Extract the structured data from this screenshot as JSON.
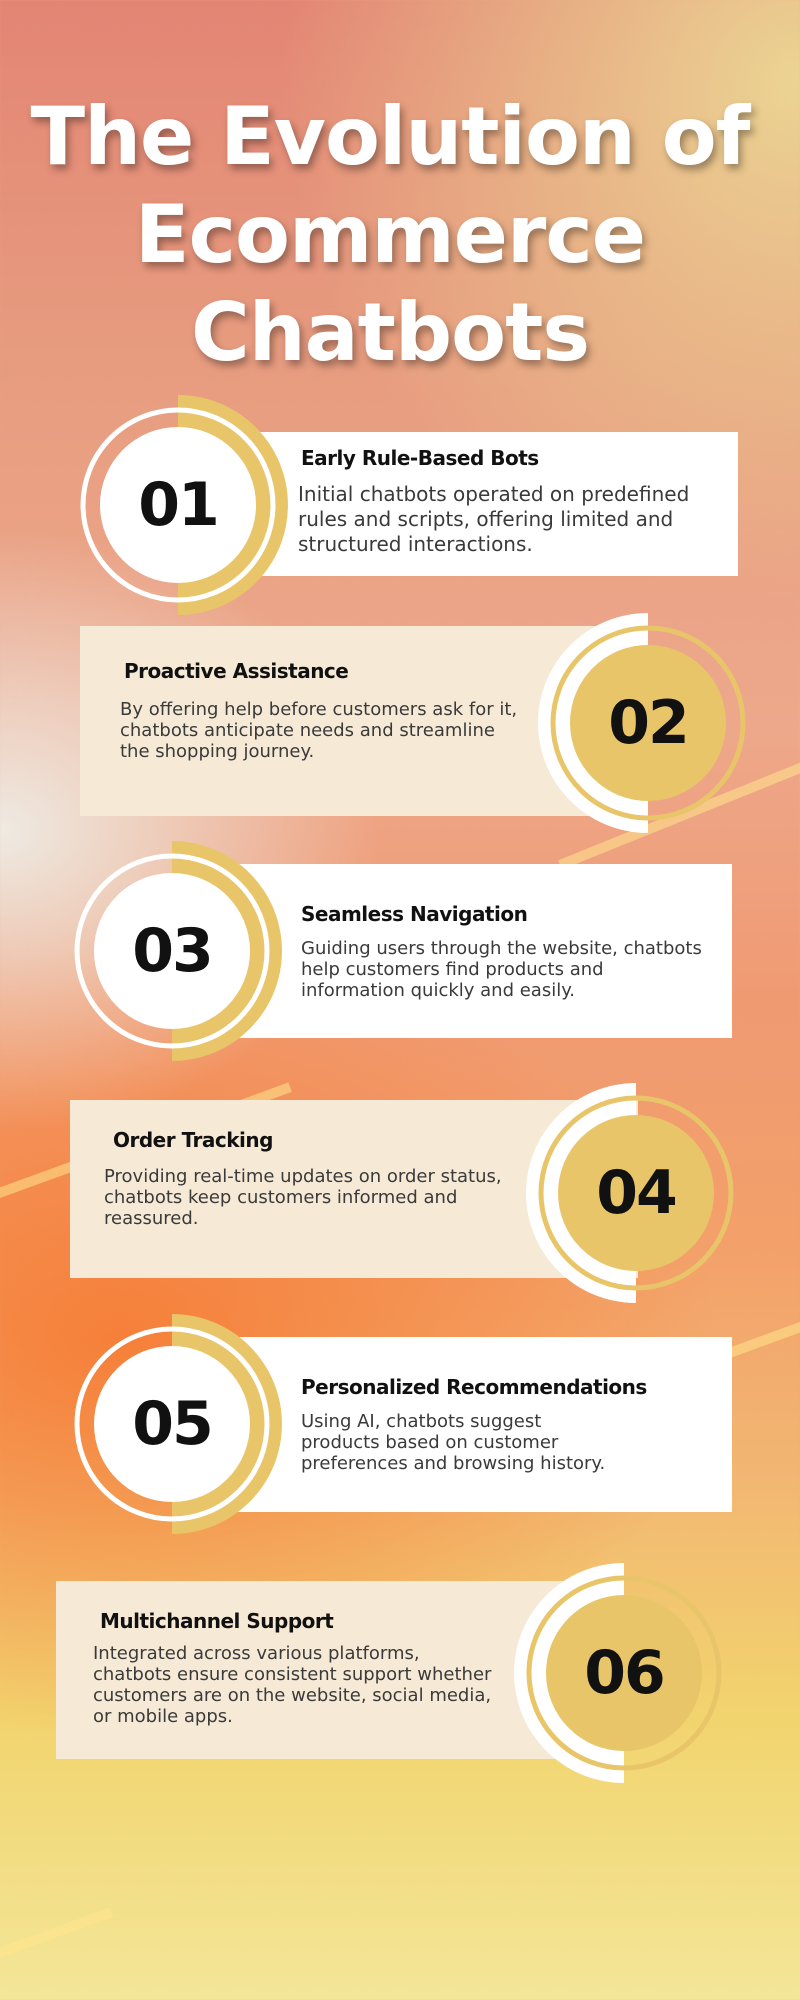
{
  "title_lines": [
    "The Evolution of",
    "Ecommerce",
    "Chatbots"
  ],
  "colors": {
    "gold": "#e9c56a",
    "cream": "#f6ead7",
    "white": "#ffffff"
  },
  "items": [
    {
      "number": "01",
      "heading": "Early Rule-Based Bots",
      "text": "Initial chatbots operated on predefined rules and scripts, offering limited and structured interactions."
    },
    {
      "number": "02",
      "heading": "Proactive Assistance",
      "text": "By offering help before customers ask for it, chatbots anticipate needs and streamline the shopping journey."
    },
    {
      "number": "03",
      "heading": "Seamless Navigation",
      "text": "Guiding users through the website, chatbots help customers find products and information quickly and easily."
    },
    {
      "number": "04",
      "heading": "Order Tracking",
      "text": "Providing real-time updates on order status, chatbots keep customers informed and reassured."
    },
    {
      "number": "05",
      "heading": "Personalized Recommendations",
      "text": "Using AI, chatbots suggest products based on customer preferences and browsing history."
    },
    {
      "number": "06",
      "heading": "Multichannel Support",
      "text": "Integrated across various platforms, chatbots ensure consistent support whether customers are on the website, social media, or mobile apps."
    }
  ]
}
